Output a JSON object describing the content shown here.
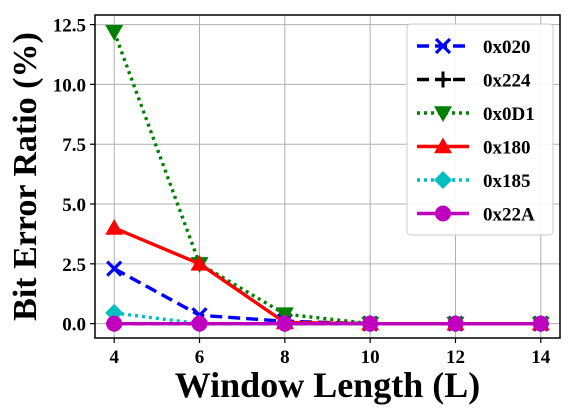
{
  "chart_data": {
    "type": "line",
    "xlabel": "Window Length (L)",
    "ylabel": "Bit Error Ratio (%)",
    "x": [
      4,
      6,
      8,
      10,
      12,
      14
    ],
    "xticks": [
      "4",
      "6",
      "8",
      "10",
      "12",
      "14"
    ],
    "yticks": [
      "0.0",
      "2.5",
      "5.0",
      "7.5",
      "10.0",
      "12.5"
    ],
    "xlim": [
      3.55,
      14.45
    ],
    "ylim": [
      -0.6,
      12.9
    ],
    "grid": true,
    "legend_position": "top-right",
    "series": [
      {
        "name": "0x020",
        "color": "#0000ff",
        "dash": "dashed",
        "marker": "x",
        "values": [
          2.3,
          0.35,
          0.1,
          0.0,
          0.0,
          0.0
        ]
      },
      {
        "name": "0x224",
        "color": "#000000",
        "dash": "dashed",
        "marker": "plus",
        "values": [
          0.0,
          0.0,
          0.0,
          0.0,
          0.0,
          0.0
        ]
      },
      {
        "name": "0x0D1",
        "color": "#008000",
        "dash": "dotted",
        "marker": "triangle-down",
        "values": [
          12.2,
          2.5,
          0.4,
          0.0,
          0.0,
          0.0
        ]
      },
      {
        "name": "0x180",
        "color": "#ff0000",
        "dash": "solid",
        "marker": "triangle-up",
        "values": [
          4.0,
          2.5,
          0.05,
          0.0,
          0.0,
          0.0
        ]
      },
      {
        "name": "0x185",
        "color": "#00bfbf",
        "dash": "dotted",
        "marker": "diamond",
        "values": [
          0.45,
          0.0,
          0.0,
          0.0,
          0.0,
          0.0
        ]
      },
      {
        "name": "0x22A",
        "color": "#bf00bf",
        "dash": "solid",
        "marker": "circle",
        "values": [
          0.0,
          0.0,
          0.0,
          0.0,
          0.0,
          0.0
        ]
      }
    ]
  }
}
